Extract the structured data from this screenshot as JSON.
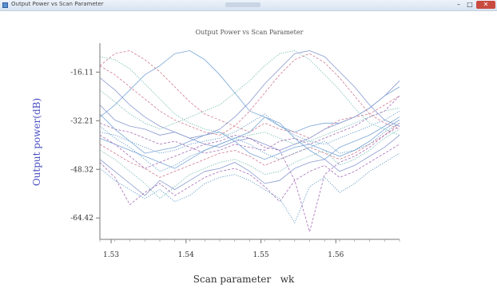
{
  "window": {
    "title": "Output Power vs Scan Parameter",
    "minimize_icon": "minimize-icon",
    "maximize_icon": "maximize-icon",
    "close_icon": "close-icon"
  },
  "chart_data": {
    "type": "line",
    "title": "Output Power vs Scan Parameter",
    "xlabel": "Scan parameter   wk",
    "ylabel": "Output power(dB)",
    "xlim": [
      1.5285,
      1.5685
    ],
    "ylim": [
      -71.5,
      -6.5
    ],
    "x_ticks": [
      1.53,
      1.54,
      1.55,
      1.56
    ],
    "x_tick_labels": [
      "1.53",
      "1.54",
      "1.55",
      "1.56"
    ],
    "y_ticks": [
      -16.11,
      -32.21,
      -48.32,
      -64.42
    ],
    "y_tick_labels": [
      "-16.11",
      "-32.21",
      "-48.32",
      "-64.42"
    ],
    "grid": false,
    "legend": "none",
    "colors": [
      "#7aa6d6",
      "#d07a8e",
      "#5fb3a8",
      "#8a9ad0",
      "#a56db8",
      "#4f8fc0"
    ],
    "x": [
      1.5285,
      1.5305,
      1.5325,
      1.5345,
      1.5365,
      1.5385,
      1.5405,
      1.5425,
      1.5445,
      1.5465,
      1.5485,
      1.5505,
      1.5525,
      1.5545,
      1.5565,
      1.5585,
      1.5605,
      1.5625,
      1.5645,
      1.5665,
      1.5685
    ],
    "series": [
      {
        "values": [
          -31,
          -27,
          -22,
          -17,
          -14,
          -10,
          -9,
          -12,
          -17,
          -23,
          -29,
          -31,
          -34,
          -36,
          -34,
          -33,
          -33,
          -31,
          -28,
          -24,
          -21
        ]
      },
      {
        "values": [
          -14,
          -10,
          -9,
          -12,
          -16,
          -21,
          -26,
          -30,
          -32,
          -34,
          -36,
          -33,
          -35,
          -36,
          -38,
          -35,
          -32,
          -31,
          -30,
          -27,
          -24
        ]
      },
      {
        "values": [
          -11,
          -12,
          -15,
          -20,
          -25,
          -30,
          -33,
          -35,
          -36,
          -38,
          -37,
          -36,
          -38,
          -40,
          -39,
          -37,
          -35,
          -33,
          -31,
          -29,
          -28
        ]
      },
      {
        "values": [
          -27,
          -32,
          -34,
          -35,
          -37,
          -36,
          -38,
          -40,
          -41,
          -39,
          -38,
          -40,
          -42,
          -40,
          -38,
          -35,
          -33,
          -31,
          -28,
          -24,
          -19
        ]
      },
      {
        "values": [
          -33,
          -35,
          -36,
          -38,
          -40,
          -39,
          -41,
          -43,
          -42,
          -40,
          -41,
          -42,
          -39,
          -38,
          -40,
          -38,
          -36,
          -34,
          -31,
          -29,
          -24
        ]
      },
      {
        "values": [
          -36,
          -37,
          -39,
          -41,
          -43,
          -42,
          -40,
          -39,
          -38,
          -36,
          -33,
          -30,
          -34,
          -37,
          -39,
          -40,
          -38,
          -36,
          -34,
          -32,
          -29
        ]
      },
      {
        "values": [
          -38,
          -40,
          -42,
          -44,
          -46,
          -48,
          -45,
          -42,
          -40,
          -38,
          -36,
          -31,
          -33,
          -38,
          -42,
          -45,
          -41,
          -39,
          -37,
          -34,
          -31
        ]
      },
      {
        "values": [
          -40,
          -43,
          -46,
          -48,
          -51,
          -49,
          -47,
          -45,
          -43,
          -42,
          -44,
          -47,
          -45,
          -43,
          -41,
          -43,
          -45,
          -43,
          -40,
          -37,
          -33
        ]
      },
      {
        "values": [
          -42,
          -45,
          -49,
          -53,
          -58,
          -54,
          -50,
          -48,
          -46,
          -45,
          -47,
          -50,
          -49,
          -46,
          -44,
          -42,
          -47,
          -45,
          -42,
          -38,
          -35
        ]
      },
      {
        "values": [
          -45,
          -49,
          -53,
          -57,
          -52,
          -55,
          -52,
          -49,
          -48,
          -46,
          -49,
          -53,
          -52,
          -48,
          -46,
          -45,
          -49,
          -47,
          -44,
          -41,
          -37
        ]
      },
      {
        "values": [
          -46,
          -51,
          -60,
          -56,
          -53,
          -57,
          -54,
          -51,
          -49,
          -48,
          -50,
          -54,
          -59,
          -52,
          -49,
          -47,
          -51,
          -49,
          -46,
          -43,
          -40
        ]
      },
      {
        "values": [
          -48,
          -52,
          -55,
          -58,
          -55,
          -59,
          -57,
          -53,
          -51,
          -50,
          -52,
          -55,
          -58,
          -66,
          -54,
          -51,
          -56,
          -53,
          -49,
          -46,
          -43
        ]
      },
      {
        "values": [
          -30,
          -35,
          -39,
          -43,
          -42,
          -41,
          -39,
          -37,
          -36,
          -39,
          -43,
          -45,
          -43,
          -41,
          -40,
          -42,
          -44,
          -42,
          -39,
          -35,
          -32
        ]
      },
      {
        "values": [
          -14,
          -17,
          -21,
          -25,
          -29,
          -32,
          -34,
          -36,
          -37,
          -34,
          -29,
          -23,
          -17,
          -12,
          -10,
          -13,
          -18,
          -24,
          -30,
          -33,
          -35
        ]
      },
      {
        "values": [
          -22,
          -26,
          -30,
          -33,
          -35,
          -33,
          -31,
          -29,
          -27,
          -23,
          -19,
          -14,
          -10,
          -9,
          -12,
          -17,
          -22,
          -28,
          -33,
          -35,
          -37
        ]
      },
      {
        "values": [
          -18,
          -22,
          -27,
          -31,
          -34,
          -36,
          -38,
          -37,
          -35,
          -31,
          -26,
          -20,
          -15,
          -10,
          -9,
          -11,
          -16,
          -21,
          -27,
          -32,
          -34
        ]
      },
      {
        "values": [
          -37,
          -40,
          -44,
          -48,
          -46,
          -44,
          -42,
          -40,
          -39,
          -37,
          -38,
          -41,
          -42,
          -52,
          -69,
          -50,
          -46,
          -44,
          -41,
          -37,
          -34
        ]
      },
      {
        "values": [
          -34,
          -38,
          -41,
          -45,
          -49,
          -47,
          -44,
          -42,
          -40,
          -38,
          -40,
          -43,
          -45,
          -43,
          -41,
          -39,
          -43,
          -42,
          -40,
          -36,
          -33
        ]
      }
    ]
  }
}
